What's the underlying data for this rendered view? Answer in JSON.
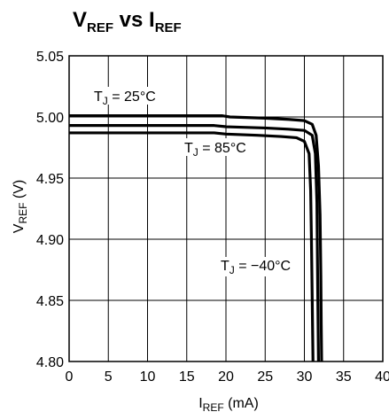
{
  "chart_data": {
    "type": "line",
    "title": {
      "main": "V",
      "main_sub": "REF",
      "mid": " vs I",
      "end_sub": "REF"
    },
    "xlabel": {
      "main": "I",
      "sub": "REF",
      "unit": " (mA)"
    },
    "ylabel": {
      "main": "V",
      "sub": "REF",
      "unit": " (V)"
    },
    "xlim": [
      0,
      40
    ],
    "ylim": [
      4.8,
      5.05
    ],
    "xticks": [
      "0",
      "5",
      "10",
      "15",
      "20",
      "25",
      "30",
      "35",
      "40"
    ],
    "yticks": [
      "4.80",
      "4.85",
      "4.90",
      "4.95",
      "5.00",
      "5.05"
    ],
    "grid": true,
    "series": [
      {
        "name": "T_J = 25°C",
        "label": {
          "pre": "T",
          "sub": "J",
          "post": " = 25°C"
        },
        "x": [
          0,
          19.5,
          20.5,
          25,
          28,
          30,
          31,
          31.5,
          31.8,
          32.0,
          32.1,
          32.15,
          32.2
        ],
        "y": [
          5.001,
          5.001,
          5.0,
          4.999,
          4.998,
          4.997,
          4.994,
          4.985,
          4.96,
          4.92,
          4.87,
          4.83,
          4.8
        ]
      },
      {
        "name": "T_J = 85°C",
        "label": {
          "pre": "T",
          "sub": "J",
          "post": " = 85°C"
        },
        "x": [
          0,
          18.5,
          20,
          24,
          27,
          29,
          30,
          30.6,
          30.8,
          30.9,
          31.0,
          31.1
        ],
        "y": [
          4.987,
          4.987,
          4.986,
          4.985,
          4.984,
          4.983,
          4.98,
          4.97,
          4.94,
          4.9,
          4.85,
          4.8
        ]
      },
      {
        "name": "T_J = −40°C",
        "label": {
          "pre": "T",
          "sub": "J",
          "post": " = −40°C"
        },
        "x": [
          0,
          18.5,
          20,
          25,
          28,
          30,
          31,
          31.4,
          31.6,
          31.7,
          31.8
        ],
        "y": [
          4.993,
          4.993,
          4.992,
          4.991,
          4.99,
          4.989,
          4.985,
          4.97,
          4.93,
          4.86,
          4.8
        ]
      }
    ]
  }
}
